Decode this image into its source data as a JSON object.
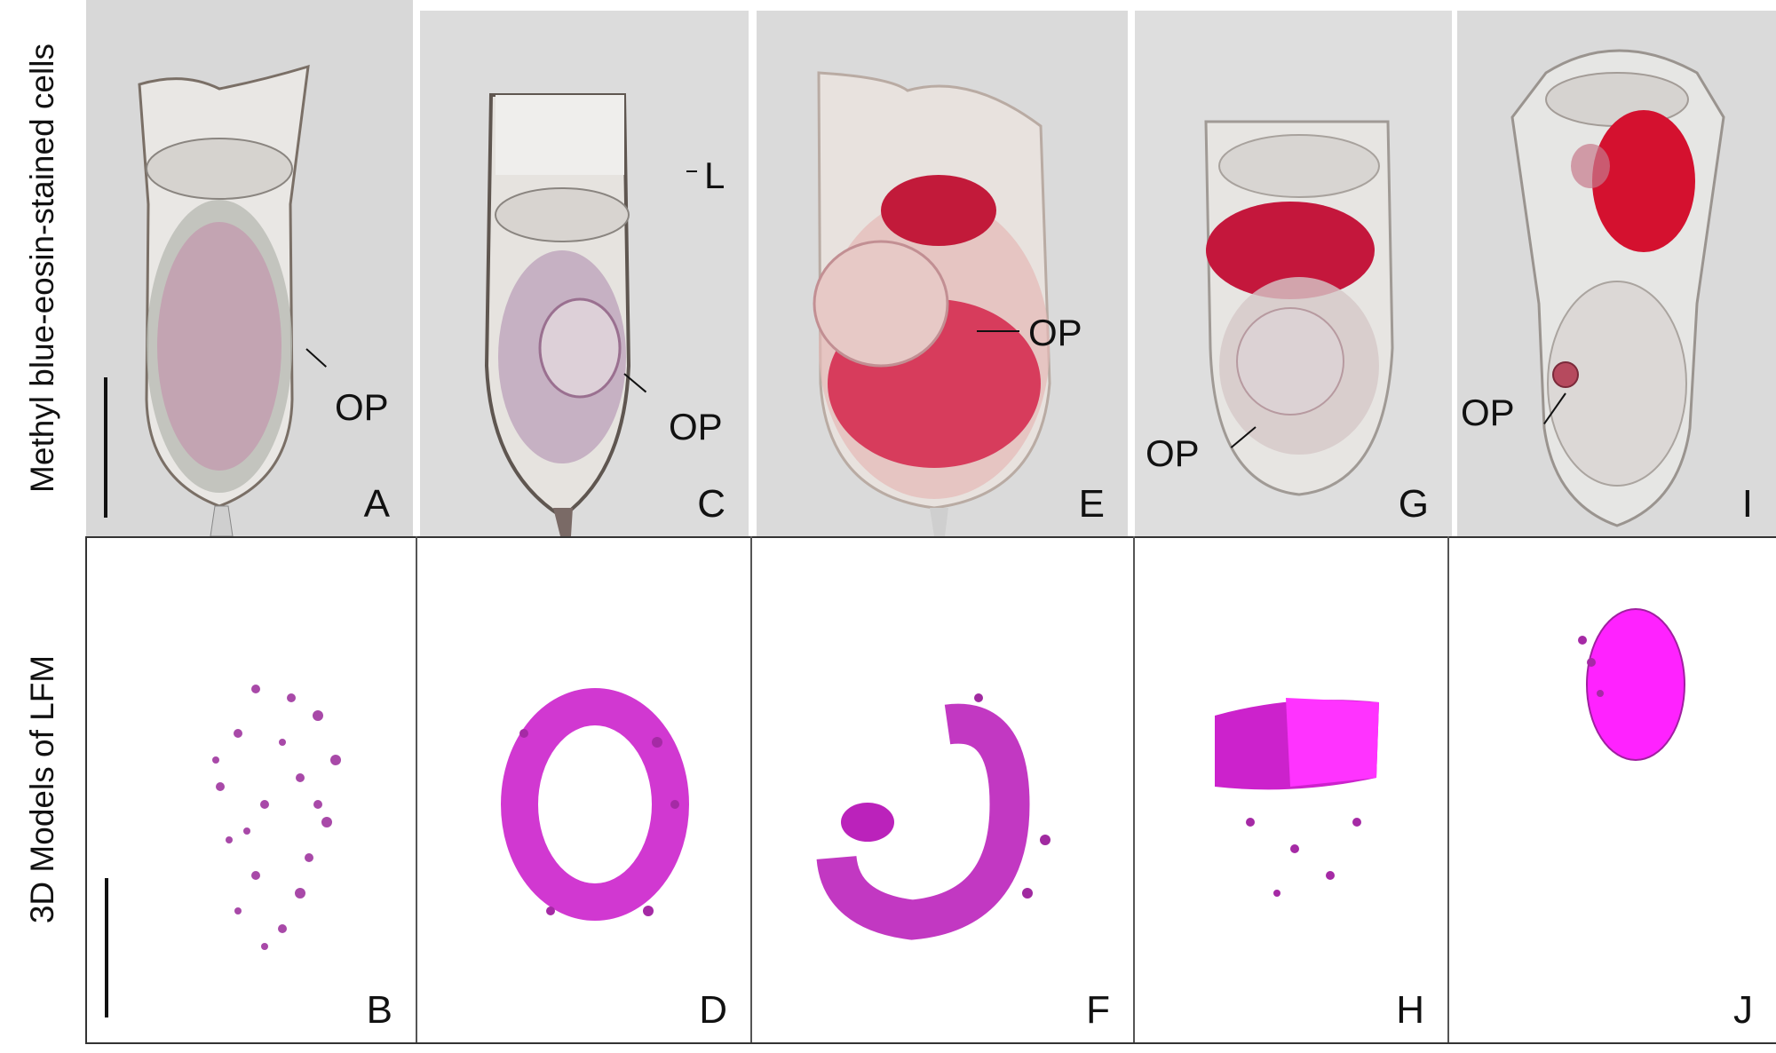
{
  "rows": {
    "top_label": "Methyl blue-eosin-stained cells",
    "bottom_label": "3D Models of LFM"
  },
  "panels": {
    "A": "A",
    "B": "B",
    "C": "C",
    "D": "D",
    "E": "E",
    "F": "F",
    "G": "G",
    "H": "H",
    "I": "I",
    "J": "J"
  },
  "annotations": {
    "op": "OP",
    "lorica": "L"
  },
  "colors": {
    "photo_background": "#d9d9d9",
    "stain_red": "#d0203a",
    "stain_purple": "#8a2a7a",
    "model_magenta": "#d600d6",
    "model_purple": "#a020a8"
  }
}
